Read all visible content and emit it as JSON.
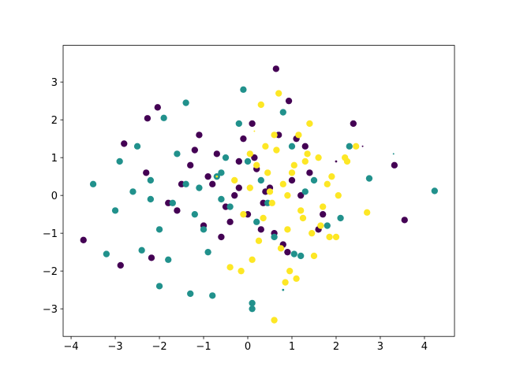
{
  "chart_data": {
    "type": "scatter",
    "xlim": [
      -4.18,
      4.68
    ],
    "ylim": [
      -3.73,
      3.97
    ],
    "xticks": [
      {
        "value": -4,
        "label": "−4"
      },
      {
        "value": -3,
        "label": "−3"
      },
      {
        "value": -2,
        "label": "−2"
      },
      {
        "value": -1,
        "label": "−1"
      },
      0,
      1,
      2,
      3,
      4
    ],
    "yticks": [
      {
        "value": -3,
        "label": "−3"
      },
      {
        "value": -2,
        "label": "−2"
      },
      {
        "value": -1,
        "label": "−1"
      },
      0,
      1,
      2,
      3
    ],
    "series": [
      {
        "color": "#440154",
        "x": [
          0.64,
          -3.72,
          3.55,
          0.93,
          -2.04,
          -2.27,
          -2.8,
          3.32,
          2.39,
          -2.88,
          -2.18,
          -1.2,
          -0.9,
          -0.5,
          -0.2,
          0.1,
          0.3,
          0.5,
          0.8,
          1.1,
          1.4,
          1.7,
          2.0,
          -1.5,
          -1.0,
          -0.7,
          -0.3,
          0.0,
          0.2,
          0.6,
          1.0,
          1.3,
          -1.8,
          -1.3,
          -0.6,
          -0.1,
          0.4,
          0.9,
          1.6,
          -2.3,
          -1.6,
          -0.8,
          -0.4,
          0.15,
          0.7,
          1.2,
          -1.1,
          0.35,
          2.6,
          -0.2
        ],
        "values": [
          3.35,
          -1.18,
          -0.65,
          2.5,
          2.33,
          2.04,
          1.37,
          0.8,
          1.9,
          -1.85,
          -1.65,
          1.2,
          0.5,
          -0.3,
          0.9,
          1.9,
          -0.9,
          0.2,
          -1.3,
          1.5,
          0.6,
          -0.5,
          0.9,
          0.3,
          -0.8,
          1.1,
          0.0,
          -0.5,
          0.7,
          -1.0,
          0.4,
          1.3,
          -0.2,
          0.8,
          -1.1,
          1.5,
          0.1,
          -1.5,
          -0.9,
          0.6,
          -0.4,
          0.3,
          -0.7,
          1.0,
          1.6,
          0.0,
          1.6,
          -0.2,
          1.3,
          0.2
        ],
        "sizes": [
          36,
          36,
          36,
          36,
          36,
          36,
          36,
          36,
          36,
          36,
          36,
          36,
          36,
          36,
          36,
          36,
          36,
          36,
          36,
          36,
          36,
          36,
          4,
          36,
          36,
          36,
          36,
          36,
          36,
          36,
          36,
          36,
          36,
          36,
          36,
          36,
          36,
          36,
          36,
          36,
          36,
          36,
          36,
          36,
          36,
          36,
          36,
          36,
          2,
          36
        ]
      },
      {
        "color": "#21918c",
        "x": [
          4.23,
          -3.5,
          -3.2,
          -2.9,
          -2.6,
          -2.4,
          -2.2,
          -2.0,
          -1.9,
          -1.7,
          -1.4,
          -1.3,
          -1.1,
          -0.9,
          -0.6,
          -0.4,
          -0.1,
          0.1,
          0.3,
          0.6,
          0.8,
          1.0,
          1.2,
          1.5,
          1.8,
          2.3,
          2.75,
          3.3,
          -2.0,
          -1.6,
          -1.2,
          -0.8,
          -0.5,
          0.0,
          0.45,
          -3.0,
          -2.5,
          -1.8,
          -1.4,
          -1.0,
          -0.6,
          -0.2,
          0.2,
          0.8,
          1.3,
          2.1,
          -2.2,
          -0.7,
          0.1,
          1.05
        ],
        "values": [
          0.12,
          0.3,
          -1.55,
          0.9,
          0.1,
          -1.45,
          0.4,
          -0.9,
          2.05,
          -0.2,
          2.45,
          -2.6,
          0.2,
          -1.5,
          0.6,
          -0.3,
          2.8,
          -3.0,
          0.4,
          -1.1,
          -2.5,
          1.3,
          -1.6,
          0.4,
          -0.8,
          1.3,
          0.45,
          1.1,
          -2.4,
          1.1,
          -0.5,
          -2.65,
          1.0,
          0.9,
          -0.2,
          -0.4,
          1.3,
          -1.7,
          0.3,
          -0.9,
          -0.1,
          1.9,
          -0.7,
          2.2,
          0.1,
          -0.6,
          -0.1,
          0.5,
          -2.85,
          -1.55
        ],
        "sizes": [
          36,
          36,
          36,
          36,
          36,
          36,
          36,
          36,
          36,
          36,
          36,
          36,
          36,
          36,
          36,
          36,
          36,
          36,
          36,
          36,
          4,
          36,
          36,
          36,
          36,
          36,
          36,
          2,
          36,
          36,
          36,
          36,
          36,
          36,
          36,
          36,
          36,
          36,
          36,
          36,
          36,
          36,
          36,
          36,
          36,
          36,
          36,
          36,
          36,
          36
        ]
      },
      {
        "color": "#fde725",
        "x": [
          0.6,
          0.85,
          0.3,
          0.1,
          0.4,
          0.7,
          1.0,
          1.2,
          1.4,
          1.6,
          1.8,
          2.0,
          2.25,
          2.2,
          1.1,
          0.9,
          0.5,
          0.2,
          -0.1,
          -0.3,
          0.75,
          1.3,
          1.7,
          1.9,
          0.6,
          0.95,
          1.5,
          0.35,
          0.05,
          0.8,
          1.15,
          1.45,
          2.05,
          2.7,
          -0.4,
          -0.7,
          0.25,
          0.55,
          1.05,
          1.65,
          0.45,
          0.15,
          1.25,
          0.65,
          1.85,
          2.45,
          0.9,
          -0.15,
          1.35,
          0.05
        ],
        "values": [
          -3.3,
          -2.3,
          2.4,
          -1.7,
          1.3,
          2.7,
          0.6,
          -0.4,
          1.9,
          1.0,
          0.3,
          -1.1,
          0.9,
          1.0,
          -2.2,
          -0.9,
          0.1,
          0.8,
          -0.5,
          0.4,
          -1.4,
          0.9,
          -0.3,
          0.5,
          1.6,
          -2.0,
          -1.6,
          -0.6,
          1.1,
          0.3,
          1.6,
          -1.0,
          0.0,
          -0.45,
          -1.9,
          0.5,
          -1.2,
          -0.2,
          0.8,
          -0.8,
          0.6,
          1.7,
          -0.6,
          1.2,
          -1.1,
          1.3,
          0.0,
          -2.0,
          1.1,
          0.2
        ],
        "sizes": [
          36,
          36,
          36,
          36,
          36,
          36,
          36,
          36,
          36,
          36,
          36,
          36,
          36,
          36,
          36,
          36,
          36,
          36,
          36,
          36,
          36,
          36,
          36,
          36,
          36,
          36,
          36,
          36,
          36,
          36,
          36,
          36,
          36,
          36,
          36,
          4,
          36,
          36,
          36,
          36,
          36,
          2,
          36,
          36,
          36,
          36,
          36,
          36,
          36,
          36
        ]
      }
    ]
  }
}
